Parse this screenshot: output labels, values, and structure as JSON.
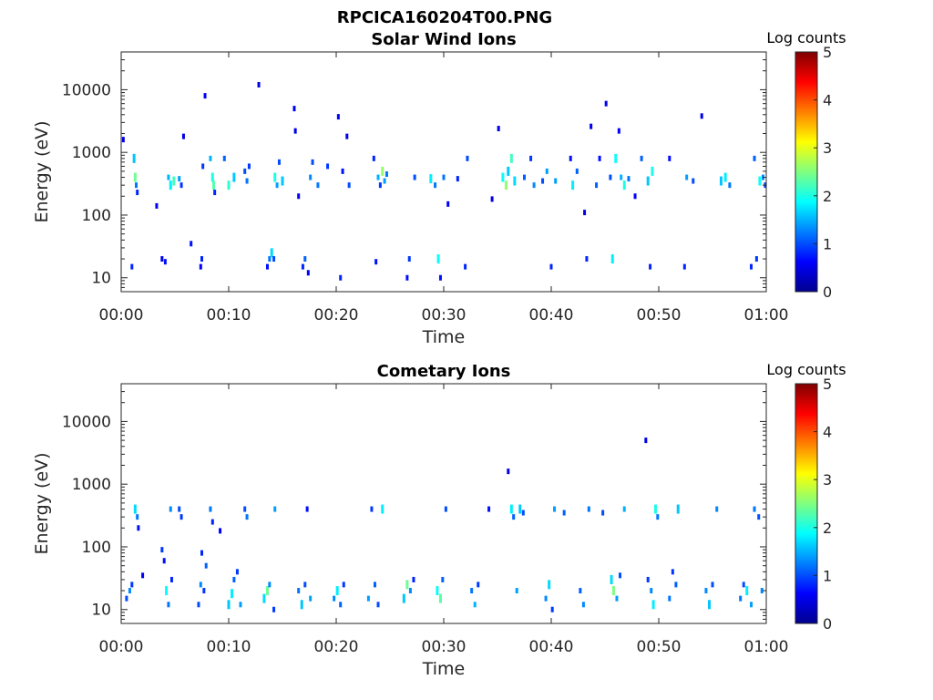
{
  "figure": {
    "title": "RPCICA160204T00.PNG"
  },
  "colorscale": [
    "#00008f",
    "#0000ff",
    "#0080ff",
    "#00ffff",
    "#80ff80",
    "#ffff00",
    "#ff8000",
    "#ff0000",
    "#800000"
  ],
  "chart_data": [
    {
      "type": "heatmap",
      "title": "Solar Wind Ions",
      "xlabel": "Time",
      "ylabel": "Energy (eV)",
      "x_ticks": [
        "00:00",
        "00:10",
        "00:20",
        "00:30",
        "00:40",
        "00:50",
        "01:00"
      ],
      "xlim_minutes": [
        0,
        60
      ],
      "y_scale": "log",
      "y_ticks": [
        "10",
        "100",
        "1000",
        "10000"
      ],
      "ylim": [
        6,
        40000
      ],
      "colorbar": {
        "label": "Log counts",
        "ticks": [
          "0",
          "1",
          "2",
          "3",
          "4",
          "5"
        ],
        "range": [
          0,
          5
        ]
      },
      "cells": [
        [
          0.2,
          1600,
          0.5
        ],
        [
          1.0,
          15,
          0.8
        ],
        [
          1.2,
          800,
          1.6
        ],
        [
          1.3,
          400,
          2.4
        ],
        [
          1.4,
          300,
          1.2
        ],
        [
          1.5,
          230,
          0.8
        ],
        [
          3.3,
          140,
          0.6
        ],
        [
          3.8,
          20,
          0.5
        ],
        [
          4.1,
          18,
          0.7
        ],
        [
          4.4,
          400,
          1.5
        ],
        [
          4.6,
          300,
          1.8
        ],
        [
          4.9,
          350,
          2.2
        ],
        [
          5.4,
          380,
          1.4
        ],
        [
          5.6,
          300,
          0.9
        ],
        [
          5.8,
          1800,
          0.5
        ],
        [
          6.5,
          35,
          0.7
        ],
        [
          7.4,
          15,
          0.6
        ],
        [
          7.5,
          20,
          0.8
        ],
        [
          7.6,
          600,
          0.9
        ],
        [
          7.8,
          8000,
          0.6
        ],
        [
          8.3,
          800,
          1.5
        ],
        [
          8.5,
          400,
          2.0
        ],
        [
          8.6,
          300,
          2.3
        ],
        [
          8.7,
          230,
          0.8
        ],
        [
          9.6,
          800,
          1.1
        ],
        [
          10.0,
          300,
          2.1
        ],
        [
          10.5,
          400,
          1.6
        ],
        [
          11.5,
          500,
          1.0
        ],
        [
          11.7,
          350,
          1.2
        ],
        [
          11.9,
          600,
          0.9
        ],
        [
          12.8,
          12000,
          0.5
        ],
        [
          13.6,
          15,
          0.7
        ],
        [
          13.8,
          20,
          1.2
        ],
        [
          14.0,
          25,
          1.7
        ],
        [
          14.2,
          20,
          1.0
        ],
        [
          14.3,
          400,
          2.0
        ],
        [
          14.5,
          300,
          1.4
        ],
        [
          14.7,
          700,
          1.0
        ],
        [
          15.0,
          350,
          1.6
        ],
        [
          16.1,
          5000,
          0.6
        ],
        [
          16.2,
          2200,
          0.5
        ],
        [
          16.5,
          200,
          0.6
        ],
        [
          16.9,
          15,
          0.8
        ],
        [
          17.1,
          20,
          1.1
        ],
        [
          17.4,
          12,
          0.6
        ],
        [
          17.6,
          400,
          1.3
        ],
        [
          17.8,
          700,
          1.0
        ],
        [
          18.3,
          300,
          1.2
        ],
        [
          19.2,
          600,
          0.9
        ],
        [
          20.2,
          3700,
          0.6
        ],
        [
          20.4,
          10,
          0.8
        ],
        [
          20.6,
          500,
          0.7
        ],
        [
          21.0,
          1800,
          0.5
        ],
        [
          21.2,
          300,
          1.0
        ],
        [
          23.5,
          800,
          0.8
        ],
        [
          23.7,
          18,
          0.7
        ],
        [
          23.9,
          400,
          1.5
        ],
        [
          24.1,
          300,
          0.9
        ],
        [
          24.3,
          500,
          2.6
        ],
        [
          24.5,
          350,
          1.4
        ],
        [
          24.7,
          450,
          1.2
        ],
        [
          26.6,
          10,
          0.7
        ],
        [
          26.8,
          20,
          0.9
        ],
        [
          27.3,
          400,
          1.0
        ],
        [
          28.8,
          380,
          1.8
        ],
        [
          29.2,
          300,
          1.2
        ],
        [
          29.5,
          20,
          1.9
        ],
        [
          29.7,
          10,
          0.7
        ],
        [
          30.0,
          400,
          1.2
        ],
        [
          30.4,
          150,
          0.6
        ],
        [
          31.3,
          380,
          0.8
        ],
        [
          32.0,
          15,
          0.8
        ],
        [
          32.2,
          800,
          1.0
        ],
        [
          34.5,
          180,
          0.5
        ],
        [
          35.1,
          2400,
          0.5
        ],
        [
          35.5,
          400,
          1.9
        ],
        [
          35.8,
          300,
          2.6
        ],
        [
          36.0,
          500,
          1.6
        ],
        [
          36.3,
          800,
          2.2
        ],
        [
          36.6,
          350,
          1.7
        ],
        [
          37.5,
          400,
          1.1
        ],
        [
          38.1,
          800,
          0.9
        ],
        [
          38.4,
          300,
          1.3
        ],
        [
          39.2,
          350,
          1.0
        ],
        [
          39.6,
          500,
          1.4
        ],
        [
          40.0,
          15,
          0.8
        ],
        [
          40.4,
          350,
          1.4
        ],
        [
          41.8,
          800,
          0.7
        ],
        [
          42.0,
          300,
          1.8
        ],
        [
          42.4,
          500,
          1.1
        ],
        [
          43.1,
          110,
          0.5
        ],
        [
          43.3,
          20,
          0.8
        ],
        [
          43.7,
          2600,
          0.5
        ],
        [
          44.2,
          300,
          1.1
        ],
        [
          44.5,
          800,
          0.7
        ],
        [
          45.1,
          6000,
          0.5
        ],
        [
          45.5,
          400,
          1.0
        ],
        [
          45.7,
          20,
          1.8
        ],
        [
          46.0,
          800,
          1.9
        ],
        [
          46.3,
          2200,
          0.6
        ],
        [
          46.5,
          400,
          1.5
        ],
        [
          46.8,
          300,
          2.0
        ],
        [
          47.2,
          380,
          1.2
        ],
        [
          47.8,
          200,
          0.6
        ],
        [
          48.4,
          800,
          1.1
        ],
        [
          49.0,
          350,
          1.6
        ],
        [
          49.2,
          15,
          0.8
        ],
        [
          49.4,
          500,
          2.0
        ],
        [
          51.0,
          800,
          0.7
        ],
        [
          52.4,
          15,
          0.8
        ],
        [
          52.6,
          400,
          1.4
        ],
        [
          53.2,
          350,
          1.0
        ],
        [
          54.0,
          3800,
          0.5
        ],
        [
          55.8,
          350,
          1.6
        ],
        [
          56.2,
          400,
          1.8
        ],
        [
          56.6,
          300,
          1.2
        ],
        [
          58.6,
          15,
          0.8
        ],
        [
          58.9,
          800,
          1.1
        ],
        [
          59.1,
          20,
          0.9
        ],
        [
          59.4,
          350,
          1.9
        ],
        [
          59.7,
          400,
          1.3
        ],
        [
          59.9,
          300,
          1.0
        ]
      ]
    },
    {
      "type": "heatmap",
      "title": "Cometary Ions",
      "xlabel": "Time",
      "ylabel": "Energy (eV)",
      "x_ticks": [
        "00:00",
        "00:10",
        "00:20",
        "00:30",
        "00:40",
        "00:50",
        "01:00"
      ],
      "xlim_minutes": [
        0,
        60
      ],
      "y_scale": "log",
      "y_ticks": [
        "10",
        "100",
        "1000",
        "10000"
      ],
      "ylim": [
        6,
        40000
      ],
      "colorbar": {
        "label": "Log counts",
        "ticks": [
          "0",
          "1",
          "2",
          "3",
          "4",
          "5"
        ],
        "range": [
          0,
          5
        ]
      },
      "cells": [
        [
          0.5,
          15,
          1.0
        ],
        [
          0.8,
          20,
          1.3
        ],
        [
          1.0,
          25,
          0.9
        ],
        [
          1.3,
          400,
          1.7
        ],
        [
          1.5,
          300,
          1.2
        ],
        [
          1.6,
          200,
          0.7
        ],
        [
          2.0,
          35,
          0.6
        ],
        [
          3.8,
          90,
          0.9
        ],
        [
          4.0,
          60,
          0.7
        ],
        [
          4.2,
          20,
          1.9
        ],
        [
          4.4,
          12,
          1.2
        ],
        [
          4.6,
          400,
          1.3
        ],
        [
          4.7,
          30,
          0.8
        ],
        [
          5.4,
          400,
          1.0
        ],
        [
          5.6,
          300,
          0.9
        ],
        [
          7.2,
          12,
          1.0
        ],
        [
          7.4,
          25,
          1.3
        ],
        [
          7.5,
          80,
          0.8
        ],
        [
          7.7,
          20,
          0.9
        ],
        [
          7.9,
          50,
          1.1
        ],
        [
          8.3,
          400,
          1.2
        ],
        [
          8.5,
          250,
          0.8
        ],
        [
          9.2,
          180,
          0.6
        ],
        [
          10.0,
          12,
          1.6
        ],
        [
          10.3,
          18,
          1.8
        ],
        [
          10.5,
          30,
          1.1
        ],
        [
          10.8,
          40,
          0.9
        ],
        [
          11.1,
          12,
          1.4
        ],
        [
          11.5,
          400,
          1.0
        ],
        [
          11.7,
          300,
          1.2
        ],
        [
          13.3,
          15,
          1.7
        ],
        [
          13.6,
          20,
          2.4
        ],
        [
          13.8,
          25,
          1.3
        ],
        [
          14.2,
          10,
          0.9
        ],
        [
          14.3,
          400,
          1.4
        ],
        [
          16.5,
          20,
          1.2
        ],
        [
          16.8,
          12,
          1.6
        ],
        [
          17.1,
          25,
          1.0
        ],
        [
          17.3,
          400,
          0.7
        ],
        [
          17.6,
          15,
          1.4
        ],
        [
          19.8,
          15,
          1.3
        ],
        [
          20.1,
          20,
          1.8
        ],
        [
          20.4,
          12,
          1.1
        ],
        [
          20.7,
          25,
          0.9
        ],
        [
          23.0,
          15,
          1.4
        ],
        [
          23.3,
          400,
          0.9
        ],
        [
          23.6,
          25,
          1.1
        ],
        [
          23.9,
          12,
          1.0
        ],
        [
          24.3,
          400,
          1.8
        ],
        [
          26.3,
          15,
          1.6
        ],
        [
          26.6,
          25,
          2.4
        ],
        [
          26.9,
          20,
          1.3
        ],
        [
          27.2,
          30,
          0.8
        ],
        [
          29.4,
          20,
          1.9
        ],
        [
          29.7,
          15,
          2.3
        ],
        [
          29.9,
          30,
          1.1
        ],
        [
          30.2,
          400,
          1.0
        ],
        [
          32.6,
          20,
          1.2
        ],
        [
          32.9,
          12,
          1.5
        ],
        [
          33.2,
          25,
          0.9
        ],
        [
          34.2,
          400,
          0.7
        ],
        [
          36.0,
          1600,
          0.5
        ],
        [
          36.3,
          400,
          1.8
        ],
        [
          36.5,
          300,
          1.1
        ],
        [
          36.8,
          20,
          1.4
        ],
        [
          37.1,
          400,
          1.6
        ],
        [
          37.4,
          350,
          1.0
        ],
        [
          39.5,
          15,
          1.3
        ],
        [
          39.8,
          25,
          1.7
        ],
        [
          40.1,
          10,
          0.9
        ],
        [
          40.3,
          400,
          1.4
        ],
        [
          41.2,
          350,
          1.1
        ],
        [
          42.7,
          20,
          1.1
        ],
        [
          43.0,
          12,
          1.3
        ],
        [
          43.5,
          400,
          1.2
        ],
        [
          44.8,
          350,
          1.0
        ],
        [
          45.6,
          30,
          1.7
        ],
        [
          45.8,
          20,
          2.5
        ],
        [
          46.1,
          15,
          1.4
        ],
        [
          46.4,
          35,
          1.0
        ],
        [
          46.8,
          400,
          1.5
        ],
        [
          48.8,
          5000,
          0.5
        ],
        [
          49.0,
          30,
          0.9
        ],
        [
          49.3,
          20,
          1.3
        ],
        [
          49.5,
          12,
          1.8
        ],
        [
          49.7,
          400,
          2.0
        ],
        [
          49.9,
          300,
          1.2
        ],
        [
          51.0,
          15,
          1.2
        ],
        [
          51.3,
          40,
          0.9
        ],
        [
          51.6,
          25,
          1.1
        ],
        [
          51.8,
          400,
          1.6
        ],
        [
          54.4,
          20,
          1.3
        ],
        [
          54.7,
          12,
          1.6
        ],
        [
          55.0,
          25,
          1.0
        ],
        [
          55.4,
          400,
          1.3
        ],
        [
          57.6,
          15,
          1.2
        ],
        [
          57.9,
          25,
          1.0
        ],
        [
          58.2,
          20,
          1.8
        ],
        [
          58.6,
          12,
          1.4
        ],
        [
          58.9,
          400,
          1.2
        ],
        [
          59.3,
          300,
          1.0
        ],
        [
          59.6,
          20,
          1.3
        ]
      ]
    }
  ]
}
